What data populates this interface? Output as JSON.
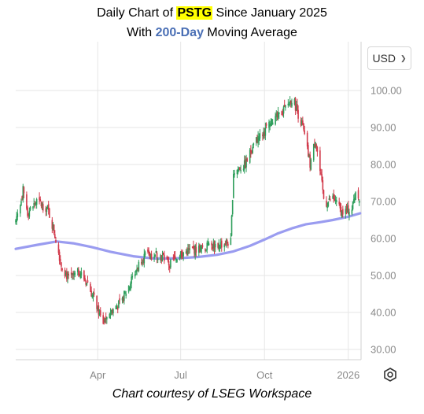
{
  "header": {
    "line1_prefix": "Daily Chart of ",
    "ticker": "PSTG",
    "line1_suffix": " Since January 2025",
    "line2_prefix": "With ",
    "ma_label": "200-Day",
    "line2_suffix": " Moving Average"
  },
  "currency_selector": {
    "label": "USD",
    "icon": "chevron-down-icon"
  },
  "settings": {
    "icon": "gear-icon"
  },
  "credit": "Chart courtesy of LSEG Workspace",
  "colors": {
    "up": "#2e9e5b",
    "down": "#d23a4b",
    "ma": "#9a9cf0",
    "grid": "#e6e6e6",
    "title_highlight": "#ffff00",
    "title_blue": "#4a6fb5"
  },
  "chart_data": {
    "type": "candlestick",
    "title": "Daily Chart of PSTG Since January 2025 With 200-Day Moving Average",
    "ylim": [
      27,
      104
    ],
    "y_ticks": [
      "30.00",
      "40.00",
      "50.00",
      "60.00",
      "70.00",
      "80.00",
      "90.00",
      "100.00"
    ],
    "y_tick_values": [
      30,
      40,
      50,
      60,
      70,
      80,
      90,
      100
    ],
    "x_tick_labels": [
      "Apr",
      "Jul",
      "Oct",
      "2026"
    ],
    "x_tick_dates": [
      "2025-04-01",
      "2025-07-01",
      "2025-10-01",
      "2026-01-01"
    ],
    "x_range": [
      "2025-01-01",
      "2026-01-15"
    ],
    "grid": true,
    "price_keypoints": [
      {
        "date": "2025-01-01",
        "close": 65
      },
      {
        "date": "2025-01-09",
        "close": 73
      },
      {
        "date": "2025-01-14",
        "close": 67
      },
      {
        "date": "2025-01-24",
        "close": 70
      },
      {
        "date": "2025-02-05",
        "close": 68
      },
      {
        "date": "2025-02-12",
        "close": 62
      },
      {
        "date": "2025-02-20",
        "close": 53
      },
      {
        "date": "2025-02-28",
        "close": 49
      },
      {
        "date": "2025-03-12",
        "close": 51
      },
      {
        "date": "2025-03-20",
        "close": 48
      },
      {
        "date": "2025-03-31",
        "close": 42
      },
      {
        "date": "2025-04-06",
        "close": 37
      },
      {
        "date": "2025-04-14",
        "close": 40
      },
      {
        "date": "2025-04-24",
        "close": 42
      },
      {
        "date": "2025-05-01",
        "close": 45
      },
      {
        "date": "2025-05-12",
        "close": 51
      },
      {
        "date": "2025-05-20",
        "close": 55
      },
      {
        "date": "2025-06-05",
        "close": 56
      },
      {
        "date": "2025-06-20",
        "close": 53
      },
      {
        "date": "2025-07-01",
        "close": 56
      },
      {
        "date": "2025-07-15",
        "close": 57
      },
      {
        "date": "2025-08-05",
        "close": 58
      },
      {
        "date": "2025-08-25",
        "close": 59
      },
      {
        "date": "2025-08-28",
        "close": 78
      },
      {
        "date": "2025-09-10",
        "close": 80
      },
      {
        "date": "2025-09-20",
        "close": 86
      },
      {
        "date": "2025-10-05",
        "close": 90
      },
      {
        "date": "2025-10-20",
        "close": 94
      },
      {
        "date": "2025-11-01",
        "close": 98
      },
      {
        "date": "2025-11-12",
        "close": 90
      },
      {
        "date": "2025-11-20",
        "close": 80
      },
      {
        "date": "2025-11-26",
        "close": 87
      },
      {
        "date": "2025-12-01",
        "close": 78
      },
      {
        "date": "2025-12-06",
        "close": 69
      },
      {
        "date": "2025-12-15",
        "close": 71
      },
      {
        "date": "2025-12-25",
        "close": 67
      },
      {
        "date": "2026-01-05",
        "close": 68
      },
      {
        "date": "2026-01-10",
        "close": 74
      },
      {
        "date": "2026-01-13",
        "close": 71
      }
    ],
    "series": [
      {
        "name": "200-Day Moving Average",
        "type": "line",
        "points": [
          {
            "date": "2025-01-01",
            "value": 57.2
          },
          {
            "date": "2025-01-25",
            "value": 58.3
          },
          {
            "date": "2025-02-15",
            "value": 59.2
          },
          {
            "date": "2025-03-05",
            "value": 58.7
          },
          {
            "date": "2025-03-25",
            "value": 57.7
          },
          {
            "date": "2025-04-15",
            "value": 56.4
          },
          {
            "date": "2025-05-10",
            "value": 55.2
          },
          {
            "date": "2025-06-01",
            "value": 54.6
          },
          {
            "date": "2025-06-25",
            "value": 54.6
          },
          {
            "date": "2025-07-20",
            "value": 55.0
          },
          {
            "date": "2025-08-10",
            "value": 55.6
          },
          {
            "date": "2025-08-28",
            "value": 56.5
          },
          {
            "date": "2025-09-15",
            "value": 58.0
          },
          {
            "date": "2025-10-01",
            "value": 59.7
          },
          {
            "date": "2025-10-15",
            "value": 61.3
          },
          {
            "date": "2025-11-01",
            "value": 62.8
          },
          {
            "date": "2025-11-15",
            "value": 63.8
          },
          {
            "date": "2025-12-01",
            "value": 64.4
          },
          {
            "date": "2025-12-15",
            "value": 65.0
          },
          {
            "date": "2026-01-01",
            "value": 65.9
          },
          {
            "date": "2026-01-14",
            "value": 66.8
          }
        ]
      }
    ]
  }
}
